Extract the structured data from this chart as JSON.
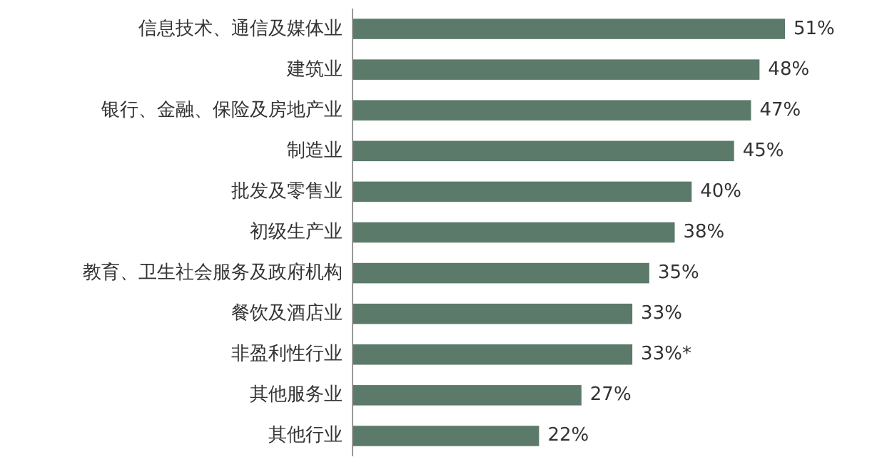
{
  "chart_data": {
    "type": "bar",
    "orientation": "horizontal",
    "categories": [
      "信息技术、通信及媒体业",
      "建筑业",
      "银行、金融、保险及房地产业",
      "制造业",
      "批发及零售业",
      "初级生产业",
      "教育、卫生社会服务及政府机构",
      "餐饮及酒店业",
      "非盈利性行业",
      "其他服务业",
      "其他行业"
    ],
    "values": [
      51,
      48,
      47,
      45,
      40,
      38,
      35,
      33,
      33,
      27,
      22
    ],
    "value_labels": [
      "51%",
      "48%",
      "47%",
      "45%",
      "40%",
      "38%",
      "35%",
      "33%",
      "33%*",
      "27%",
      "22%"
    ],
    "color": "#5b7a69"
  }
}
